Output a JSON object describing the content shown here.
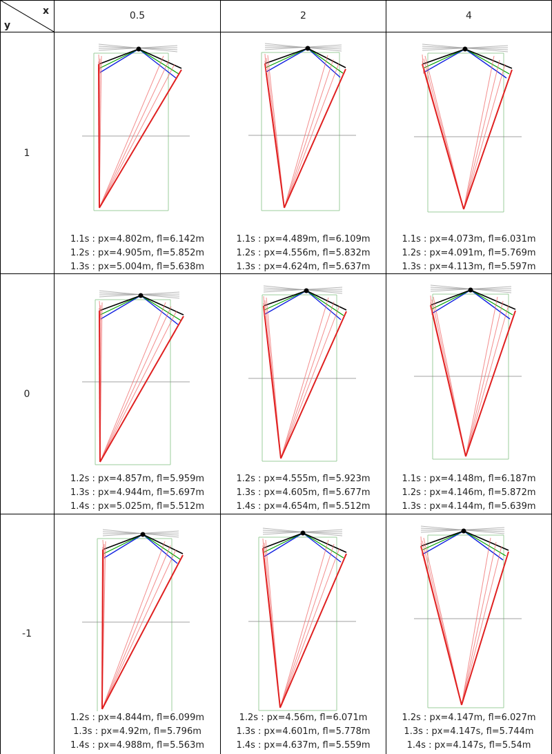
{
  "header": {
    "x_label": "x",
    "y_label": "y"
  },
  "columns": [
    "0.5",
    "2",
    "4"
  ],
  "rows": [
    "1",
    "0",
    "-1"
  ],
  "colors": {
    "apex": "#e02020",
    "ray_light": "#f07070",
    "black_ray": "#000000",
    "green_ray": "#00a000",
    "blue_ray": "#1020e0",
    "gray_ray": "#999999",
    "rect": "#90c890",
    "horizon": "#888888"
  },
  "cells": [
    {
      "captions": [
        "1.1s : px=4.802m, fl=6.142m",
        "1.2s : px=4.905m, fl=5.852m",
        "1.3s : px=5.004m, fl=5.638m"
      ]
    },
    {
      "captions": [
        "1.1s : px=4.489m, fl=6.109m",
        "1.2s : px=4.556m, fl=5.832m",
        "1.3s : px=4.624m, fl=5.637m"
      ]
    },
    {
      "captions": [
        "1.1s : px=4.073m, fl=6.031m",
        "1.2s : px=4.091m, fl=5.769m",
        "1.3s : px=4.113m, fl=5.597m"
      ]
    },
    {
      "captions": [
        "1.2s : px=4.857m, fl=5.959m",
        "1.3s : px=4.944m, fl=5.697m",
        "1.4s : px=5.025m, fl=5.512m"
      ]
    },
    {
      "captions": [
        "1.2s : px=4.555m, fl=5.923m",
        "1.3s : px=4.605m, fl=5.677m",
        "1.4s : px=4.654m, fl=5.512m"
      ]
    },
    {
      "captions": [
        "1.1s : px=4.148m, fl=6.187m",
        "1.2s : px=4.146m, fl=5.872m",
        "1.3s : px=4.144m, fl=5.639m"
      ]
    },
    {
      "captions": [
        "1.2s : px=4.844m, fl=6.099m",
        "1.3s : px=4.92m, fl=5.796m",
        "1.4s : px=4.988m, fl=5.563m"
      ]
    },
    {
      "captions": [
        "1.2s : px=4.56m, fl=6.071m",
        "1.3s : px=4.601m, fl=5.778m",
        "1.4s : px=4.637m, fl=5.559m"
      ]
    },
    {
      "captions": [
        "1.2s : px=4.147m, fl=6.027m",
        "1.3s : px=4.147s, fl=5.744m",
        "1.4s : px=4.147s, fl=5.54m"
      ]
    }
  ]
}
